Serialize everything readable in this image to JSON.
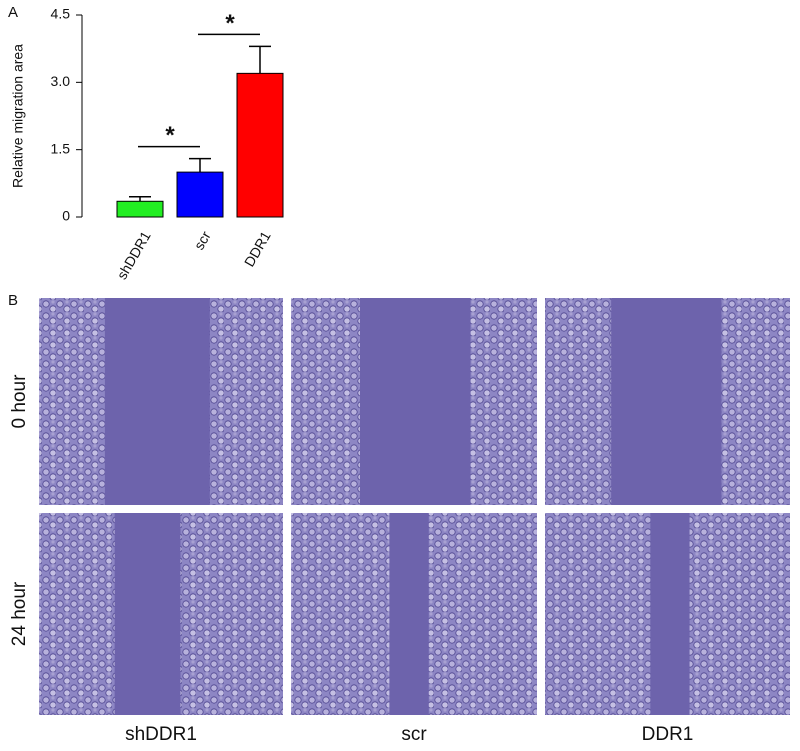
{
  "panel_a_label": "A",
  "chart_data": {
    "type": "bar",
    "y_label": "Relative migration area",
    "categories": [
      "shDDR1",
      "scr",
      "DDR1"
    ],
    "values": [
      0.35,
      1.0,
      3.2
    ],
    "errors": [
      0.1,
      0.3,
      0.6
    ],
    "colors": [
      "#22ee22",
      "#0000ff",
      "#ff0000"
    ],
    "ylim": [
      0,
      4.5
    ],
    "yticks": [
      0,
      1.5,
      {
        "value": 3,
        "label": "3.0"
      },
      4.5
    ],
    "annotations": [
      "*",
      "*"
    ]
  },
  "panel_b": {
    "label": "B",
    "rows": [
      "0 hour",
      "24 hour"
    ],
    "columns": [
      "shDDR1",
      "scr",
      "DDR1"
    ]
  }
}
